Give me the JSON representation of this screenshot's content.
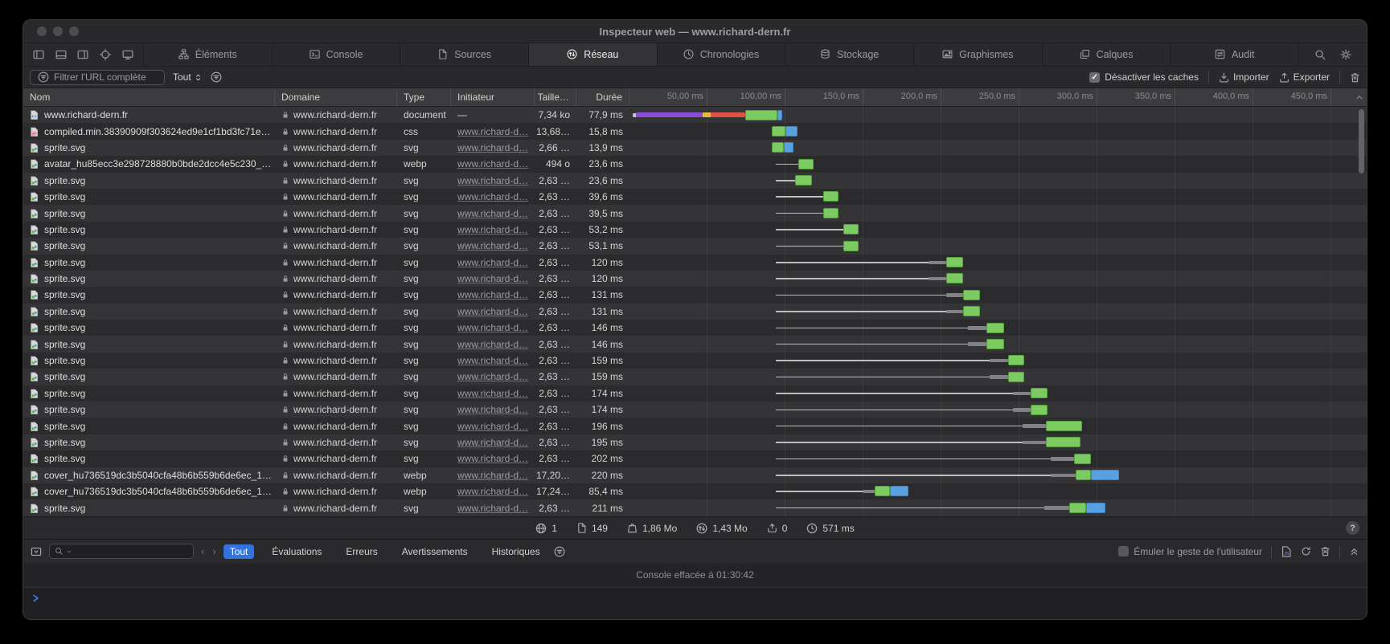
{
  "window": {
    "title": "Inspecteur web — www.richard-dern.fr"
  },
  "tabs": {
    "items": [
      {
        "label": "Éléments",
        "icon": "dom-tree-icon",
        "active": false
      },
      {
        "label": "Console",
        "icon": "console-box-icon",
        "active": false
      },
      {
        "label": "Sources",
        "icon": "document-icon",
        "active": false
      },
      {
        "label": "Réseau",
        "icon": "network-icon",
        "active": true
      },
      {
        "label": "Chronologies",
        "icon": "clock-icon",
        "active": false
      },
      {
        "label": "Stockage",
        "icon": "database-icon",
        "active": false
      },
      {
        "label": "Graphismes",
        "icon": "picture-icon",
        "active": false
      },
      {
        "label": "Calques",
        "icon": "layers-icon",
        "active": false
      },
      {
        "label": "Audit",
        "icon": "audit-icon",
        "active": false
      }
    ]
  },
  "filter_bar": {
    "url_filter_placeholder": "Filtrer l'URL complète",
    "scope_value": "Tout",
    "disable_caches_label": "Désactiver les caches",
    "disable_caches_checked": true,
    "import_label": "Importer",
    "export_label": "Exporter"
  },
  "network": {
    "columns": {
      "name": "Nom",
      "domain": "Domaine",
      "type": "Type",
      "initiator": "Initiateur",
      "size": "Taille…",
      "duration": "Durée"
    },
    "timeline_ticks": [
      {
        "label": "50,00 ms",
        "ms": 50
      },
      {
        "label": "100,00 ms",
        "ms": 100
      },
      {
        "label": "150,0 ms",
        "ms": 150
      },
      {
        "label": "200,0 ms",
        "ms": 200
      },
      {
        "label": "250,0 ms",
        "ms": 250
      },
      {
        "label": "300,0 ms",
        "ms": 300
      },
      {
        "label": "350,0 ms",
        "ms": 350
      },
      {
        "label": "400,0 ms",
        "ms": 400
      },
      {
        "label": "450,0 ms",
        "ms": 450
      }
    ],
    "rows": [
      {
        "icon": "doc-code-icon",
        "name": "www.richard-dern.fr",
        "domain": "www.richard-dern.fr",
        "type": "document",
        "initiator": "—",
        "initiator_is_link": false,
        "size": "7,34 ko",
        "duration": "77,9 ms",
        "wf": [
          [
            "dot",
            2
          ],
          [
            "purple",
            4,
            47
          ],
          [
            "yellow",
            47,
            52
          ],
          [
            "red",
            52,
            74
          ],
          [
            "green",
            74,
            95
          ],
          [
            "blue",
            95,
            98
          ]
        ]
      },
      {
        "icon": "css-icon",
        "name": "compiled.min.38390909f303624ed9e1cf1bd3fc71e…",
        "domain": "www.richard-dern.fr",
        "type": "css",
        "initiator": "www.richard-d…",
        "initiator_is_link": true,
        "size": "13,68…",
        "duration": "15,8 ms",
        "wf": [
          [
            "green",
            91,
            100
          ],
          [
            "blue",
            100,
            107.5
          ]
        ]
      },
      {
        "icon": "image-file-icon",
        "name": "sprite.svg",
        "domain": "www.richard-dern.fr",
        "type": "svg",
        "initiator": "www.richard-d…",
        "initiator_is_link": true,
        "size": "2,66 …",
        "duration": "13,9 ms",
        "wf": [
          [
            "green",
            91,
            99
          ],
          [
            "blue",
            99,
            105
          ]
        ]
      },
      {
        "icon": "image-file-icon",
        "name": "avatar_hu85ecc3e298728880b0bde2dcc4e5c230_…",
        "domain": "www.richard-dern.fr",
        "type": "webp",
        "initiator": "www.richard-d…",
        "initiator_is_link": true,
        "size": "494 o",
        "duration": "23,6 ms",
        "wf": [
          [
            "line",
            94,
            108
          ],
          [
            "green",
            108,
            118
          ]
        ]
      },
      {
        "icon": "image-file-icon",
        "name": "sprite.svg",
        "domain": "www.richard-dern.fr",
        "type": "svg",
        "initiator": "www.richard-d…",
        "initiator_is_link": true,
        "size": "2,63 …",
        "duration": "23,6 ms",
        "wf": [
          [
            "line",
            94,
            106
          ],
          [
            "green",
            106,
            117
          ]
        ]
      },
      {
        "icon": "image-file-icon",
        "name": "sprite.svg",
        "domain": "www.richard-dern.fr",
        "type": "svg",
        "initiator": "www.richard-d…",
        "initiator_is_link": true,
        "size": "2,63 …",
        "duration": "39,6 ms",
        "wf": [
          [
            "line",
            94,
            124
          ],
          [
            "green",
            124,
            134
          ]
        ]
      },
      {
        "icon": "image-file-icon",
        "name": "sprite.svg",
        "domain": "www.richard-dern.fr",
        "type": "svg",
        "initiator": "www.richard-d…",
        "initiator_is_link": true,
        "size": "2,63 …",
        "duration": "39,5 ms",
        "wf": [
          [
            "line",
            94,
            124
          ],
          [
            "green",
            124,
            134
          ]
        ]
      },
      {
        "icon": "image-file-icon",
        "name": "sprite.svg",
        "domain": "www.richard-dern.fr",
        "type": "svg",
        "initiator": "www.richard-d…",
        "initiator_is_link": true,
        "size": "2,63 …",
        "duration": "53,2 ms",
        "wf": [
          [
            "line",
            94,
            137
          ],
          [
            "green",
            137,
            147
          ]
        ]
      },
      {
        "icon": "image-file-icon",
        "name": "sprite.svg",
        "domain": "www.richard-dern.fr",
        "type": "svg",
        "initiator": "www.richard-d…",
        "initiator_is_link": true,
        "size": "2,63 …",
        "duration": "53,1 ms",
        "wf": [
          [
            "line",
            94,
            137
          ],
          [
            "green",
            137,
            147
          ]
        ]
      },
      {
        "icon": "image-file-icon",
        "name": "sprite.svg",
        "domain": "www.richard-dern.fr",
        "type": "svg",
        "initiator": "www.richard-d…",
        "initiator_is_link": true,
        "size": "2,63 …",
        "duration": "120 ms",
        "wf": [
          [
            "line",
            94,
            192
          ],
          [
            "thick",
            192,
            203
          ],
          [
            "green",
            203,
            214
          ]
        ]
      },
      {
        "icon": "image-file-icon",
        "name": "sprite.svg",
        "domain": "www.richard-dern.fr",
        "type": "svg",
        "initiator": "www.richard-d…",
        "initiator_is_link": true,
        "size": "2,63 …",
        "duration": "120 ms",
        "wf": [
          [
            "line",
            94,
            192
          ],
          [
            "thick",
            192,
            203
          ],
          [
            "green",
            203,
            214
          ]
        ]
      },
      {
        "icon": "image-file-icon",
        "name": "sprite.svg",
        "domain": "www.richard-dern.fr",
        "type": "svg",
        "initiator": "www.richard-d…",
        "initiator_is_link": true,
        "size": "2,63 …",
        "duration": "131 ms",
        "wf": [
          [
            "line",
            94,
            203
          ],
          [
            "thick",
            203,
            214
          ],
          [
            "green",
            214,
            225
          ]
        ]
      },
      {
        "icon": "image-file-icon",
        "name": "sprite.svg",
        "domain": "www.richard-dern.fr",
        "type": "svg",
        "initiator": "www.richard-d…",
        "initiator_is_link": true,
        "size": "2,63 …",
        "duration": "131 ms",
        "wf": [
          [
            "line",
            94,
            203
          ],
          [
            "thick",
            203,
            214
          ],
          [
            "green",
            214,
            225
          ]
        ]
      },
      {
        "icon": "image-file-icon",
        "name": "sprite.svg",
        "domain": "www.richard-dern.fr",
        "type": "svg",
        "initiator": "www.richard-d…",
        "initiator_is_link": true,
        "size": "2,63 …",
        "duration": "146 ms",
        "wf": [
          [
            "line",
            94,
            217
          ],
          [
            "thick",
            217,
            229
          ],
          [
            "green",
            229,
            240
          ]
        ]
      },
      {
        "icon": "image-file-icon",
        "name": "sprite.svg",
        "domain": "www.richard-dern.fr",
        "type": "svg",
        "initiator": "www.richard-d…",
        "initiator_is_link": true,
        "size": "2,63 …",
        "duration": "146 ms",
        "wf": [
          [
            "line",
            94,
            217
          ],
          [
            "thick",
            217,
            229
          ],
          [
            "green",
            229,
            240
          ]
        ]
      },
      {
        "icon": "image-file-icon",
        "name": "sprite.svg",
        "domain": "www.richard-dern.fr",
        "type": "svg",
        "initiator": "www.richard-d…",
        "initiator_is_link": true,
        "size": "2,63 …",
        "duration": "159 ms",
        "wf": [
          [
            "line",
            94,
            231
          ],
          [
            "thick",
            231,
            243
          ],
          [
            "green",
            243,
            253
          ]
        ]
      },
      {
        "icon": "image-file-icon",
        "name": "sprite.svg",
        "domain": "www.richard-dern.fr",
        "type": "svg",
        "initiator": "www.richard-d…",
        "initiator_is_link": true,
        "size": "2,63 …",
        "duration": "159 ms",
        "wf": [
          [
            "line",
            94,
            231
          ],
          [
            "thick",
            231,
            243
          ],
          [
            "green",
            243,
            253
          ]
        ]
      },
      {
        "icon": "image-file-icon",
        "name": "sprite.svg",
        "domain": "www.richard-dern.fr",
        "type": "svg",
        "initiator": "www.richard-d…",
        "initiator_is_link": true,
        "size": "2,63 …",
        "duration": "174 ms",
        "wf": [
          [
            "line",
            94,
            246
          ],
          [
            "thick",
            246,
            257
          ],
          [
            "green",
            257,
            268
          ]
        ]
      },
      {
        "icon": "image-file-icon",
        "name": "sprite.svg",
        "domain": "www.richard-dern.fr",
        "type": "svg",
        "initiator": "www.richard-d…",
        "initiator_is_link": true,
        "size": "2,63 …",
        "duration": "174 ms",
        "wf": [
          [
            "line",
            94,
            246
          ],
          [
            "thick",
            246,
            257
          ],
          [
            "green",
            257,
            268
          ]
        ]
      },
      {
        "icon": "image-file-icon",
        "name": "sprite.svg",
        "domain": "www.richard-dern.fr",
        "type": "svg",
        "initiator": "www.richard-d…",
        "initiator_is_link": true,
        "size": "2,63 …",
        "duration": "196 ms",
        "wf": [
          [
            "line",
            94,
            252
          ],
          [
            "thick",
            252,
            267
          ],
          [
            "green",
            267,
            290
          ]
        ]
      },
      {
        "icon": "image-file-icon",
        "name": "sprite.svg",
        "domain": "www.richard-dern.fr",
        "type": "svg",
        "initiator": "www.richard-d…",
        "initiator_is_link": true,
        "size": "2,63 …",
        "duration": "195 ms",
        "wf": [
          [
            "line",
            94,
            252
          ],
          [
            "thick",
            252,
            267
          ],
          [
            "green",
            267,
            289
          ]
        ]
      },
      {
        "icon": "image-file-icon",
        "name": "sprite.svg",
        "domain": "www.richard-dern.fr",
        "type": "svg",
        "initiator": "www.richard-d…",
        "initiator_is_link": true,
        "size": "2,63 …",
        "duration": "202 ms",
        "wf": [
          [
            "line",
            94,
            270
          ],
          [
            "thick",
            270,
            285
          ],
          [
            "green",
            285,
            296
          ]
        ]
      },
      {
        "icon": "image-file-icon",
        "name": "cover_hu736519dc3b5040cfa48b6b559b6de6ec_1…",
        "domain": "www.richard-dern.fr",
        "type": "webp",
        "initiator": "www.richard-d…",
        "initiator_is_link": true,
        "size": "17,20…",
        "duration": "220 ms",
        "wf": [
          [
            "line",
            94,
            270
          ],
          [
            "thick",
            270,
            286
          ],
          [
            "green",
            286,
            296
          ],
          [
            "blue",
            296,
            314
          ]
        ]
      },
      {
        "icon": "image-file-icon",
        "name": "cover_hu736519dc3b5040cfa48b6b559b6de6ec_1…",
        "domain": "www.richard-dern.fr",
        "type": "webp",
        "initiator": "www.richard-d…",
        "initiator_is_link": true,
        "size": "17,24…",
        "duration": "85,4 ms",
        "wf": [
          [
            "line",
            94,
            150
          ],
          [
            "thick",
            150,
            157
          ],
          [
            "green",
            157,
            167
          ],
          [
            "blue",
            167,
            179
          ]
        ]
      },
      {
        "icon": "image-file-icon",
        "name": "sprite.svg",
        "domain": "www.richard-dern.fr",
        "type": "svg",
        "initiator": "www.richard-d…",
        "initiator_is_link": true,
        "size": "2,63 …",
        "duration": "211 ms",
        "wf": [
          [
            "line",
            94,
            266
          ],
          [
            "thick",
            266,
            282
          ],
          [
            "green",
            282,
            293
          ],
          [
            "blue",
            293,
            305
          ]
        ]
      }
    ],
    "summary": [
      {
        "icon": "globe-icon",
        "value": "1"
      },
      {
        "icon": "page-icon",
        "value": "149"
      },
      {
        "icon": "weight-icon",
        "value": "1,86 Mo"
      },
      {
        "icon": "transfer-icon",
        "value": "1,43 Mo"
      },
      {
        "icon": "cache-up-icon",
        "value": "0"
      },
      {
        "icon": "small-clock-icon",
        "value": "571 ms"
      }
    ]
  },
  "console": {
    "filters": [
      "Tout",
      "Évaluations",
      "Erreurs",
      "Avertissements",
      "Historiques"
    ],
    "active_filter": "Tout",
    "emulate_label": "Émuler le geste de l'utilisateur",
    "emulate_checked": false,
    "message": "Console effacée à 01:30:42"
  },
  "colors": {
    "accent_blue": "#3473dd",
    "wf_green": "#7bcb62",
    "wf_blue": "#58a0df",
    "wf_purple": "#8a4cd8",
    "wf_red": "#dd5147",
    "wf_yellow": "#e3b93f"
  }
}
